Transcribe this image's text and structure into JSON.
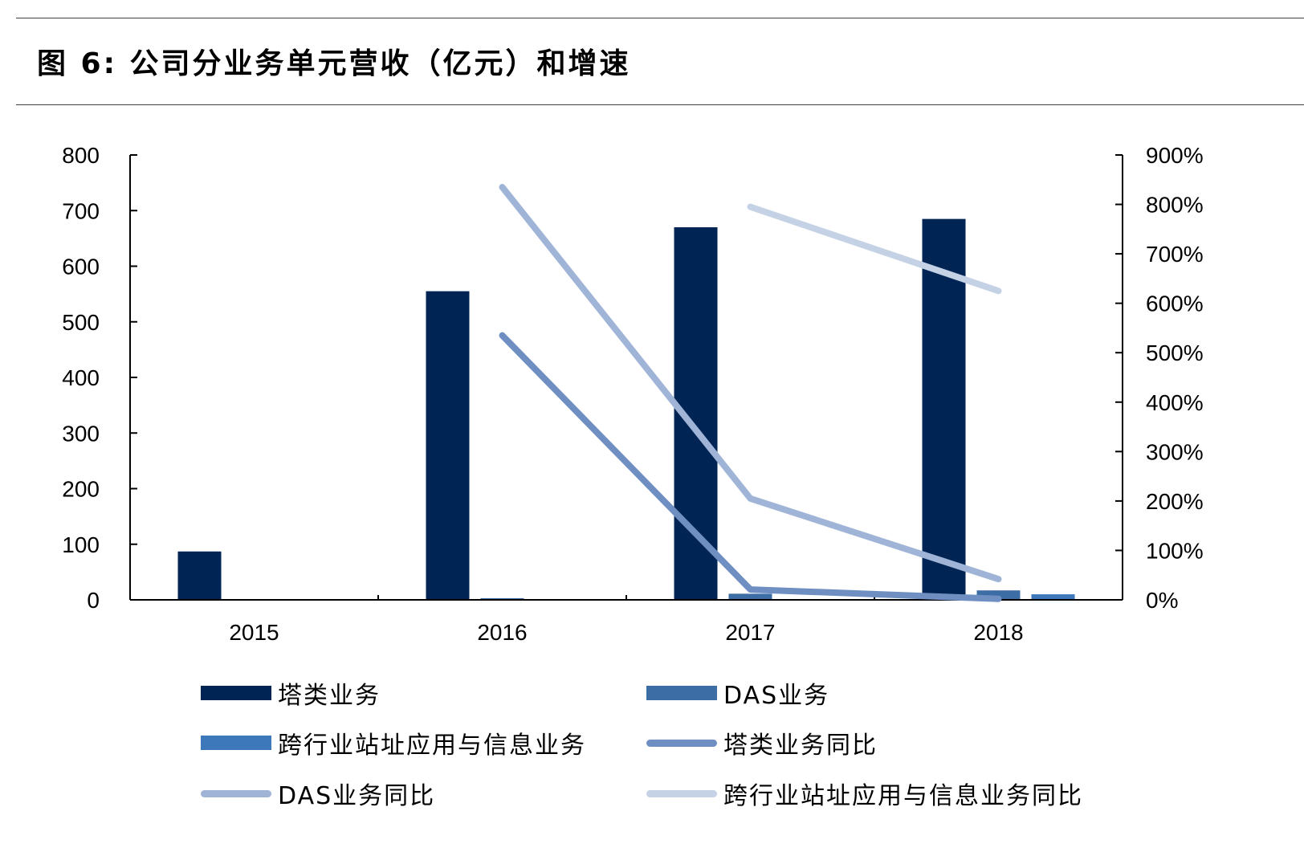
{
  "figure": {
    "title": "图  6:  公司分业务单元营收（亿元）和增速"
  },
  "chart_data": {
    "type": "bar+line",
    "categories": [
      "2015",
      "2016",
      "2017",
      "2018"
    ],
    "left_axis": {
      "ylim": [
        0,
        800
      ],
      "ticks": [
        "0",
        "100",
        "200",
        "300",
        "400",
        "500",
        "600",
        "700",
        "800"
      ]
    },
    "right_axis": {
      "ylim": [
        0,
        9
      ],
      "ticks": [
        "0%",
        "100%",
        "200%",
        "300%",
        "400%",
        "500%",
        "600%",
        "700%",
        "800%",
        "900%"
      ]
    },
    "bar_series": [
      {
        "name": "塔类业务",
        "color": "#002554",
        "values": [
          87,
          555,
          670,
          685
        ]
      },
      {
        "name": "DAS业务",
        "color": "#3c6ea5",
        "values": [
          0,
          3,
          11,
          17
        ]
      },
      {
        "name": "跨行业站址应用与信息业务",
        "color": "#3d79ba",
        "values": [
          0,
          0,
          0,
          10
        ]
      }
    ],
    "line_series": [
      {
        "name": "塔类业务同比",
        "color": "#6f8fc3",
        "values": [
          null,
          5.35,
          0.21,
          0.02
        ]
      },
      {
        "name": "DAS业务同比",
        "color": "#9fb4d7",
        "values": [
          null,
          8.35,
          2.05,
          0.42
        ]
      },
      {
        "name": "跨行业站址应用与信息业务同比",
        "color": "#c5d2e6",
        "values": [
          null,
          null,
          7.95,
          6.25
        ]
      }
    ],
    "legend_position": "bottom",
    "grid": false
  }
}
